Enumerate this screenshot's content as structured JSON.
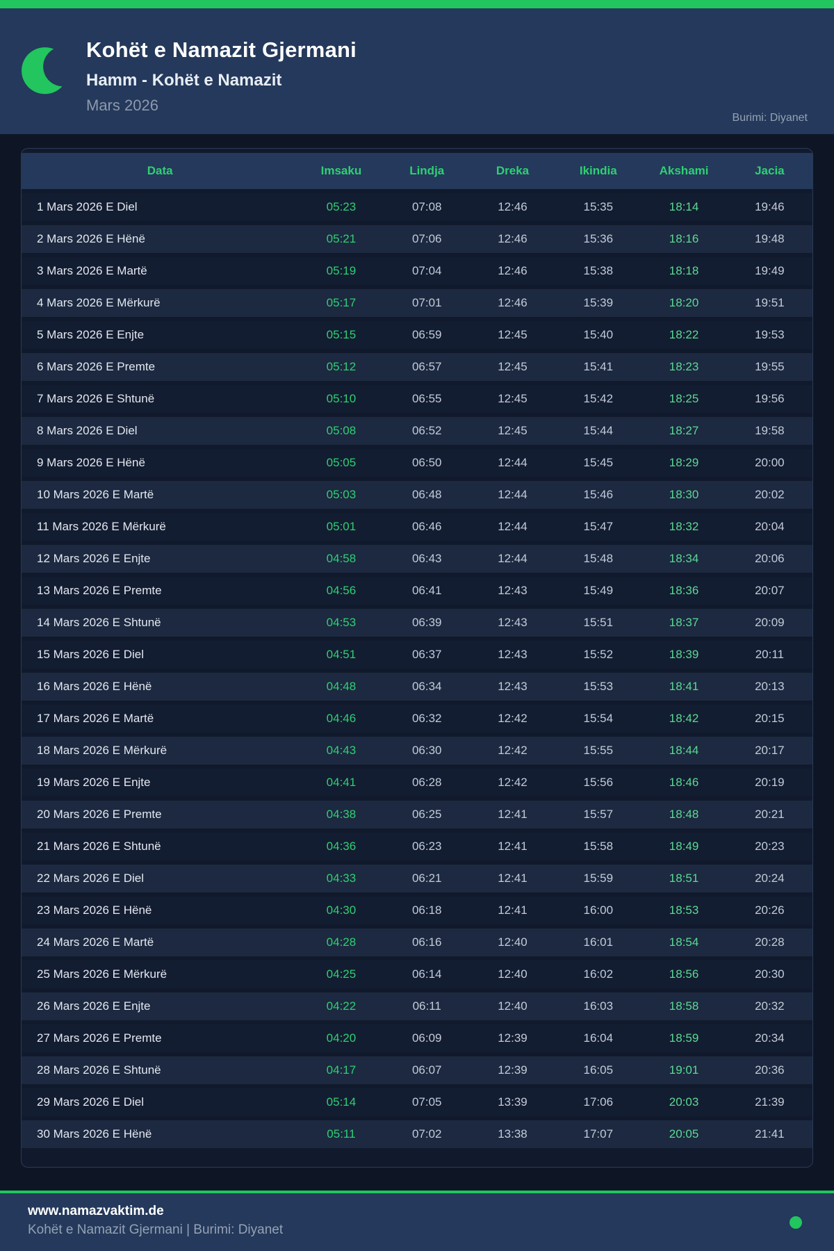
{
  "colors": {
    "accent_green": "#22c55e",
    "header_bg": "#24395b",
    "page_bg": "#0e1626",
    "row_odd": "#131d31",
    "row_even": "#1c2940",
    "imsaku_green": "#2fd072",
    "akshami_green": "#5cd993"
  },
  "icons": {
    "logo": "crescent-moon-icon",
    "footer_status": "green-dot-icon"
  },
  "header": {
    "title": "Kohët e Namazit Gjermani",
    "subtitle": "Hamm - Kohët e Namazit",
    "month": "Mars 2026",
    "source": "Burimi: Diyanet"
  },
  "table": {
    "columns": [
      "Data",
      "Imsaku",
      "Lindja",
      "Dreka",
      "Ikindia",
      "Akshami",
      "Jacia"
    ],
    "rows": [
      [
        "1 Mars 2026 E Diel",
        "05:23",
        "07:08",
        "12:46",
        "15:35",
        "18:14",
        "19:46"
      ],
      [
        "2 Mars 2026 E Hënë",
        "05:21",
        "07:06",
        "12:46",
        "15:36",
        "18:16",
        "19:48"
      ],
      [
        "3 Mars 2026 E Martë",
        "05:19",
        "07:04",
        "12:46",
        "15:38",
        "18:18",
        "19:49"
      ],
      [
        "4 Mars 2026 E Mërkurë",
        "05:17",
        "07:01",
        "12:46",
        "15:39",
        "18:20",
        "19:51"
      ],
      [
        "5 Mars 2026 E Enjte",
        "05:15",
        "06:59",
        "12:45",
        "15:40",
        "18:22",
        "19:53"
      ],
      [
        "6 Mars 2026 E Premte",
        "05:12",
        "06:57",
        "12:45",
        "15:41",
        "18:23",
        "19:55"
      ],
      [
        "7 Mars 2026 E Shtunë",
        "05:10",
        "06:55",
        "12:45",
        "15:42",
        "18:25",
        "19:56"
      ],
      [
        "8 Mars 2026 E Diel",
        "05:08",
        "06:52",
        "12:45",
        "15:44",
        "18:27",
        "19:58"
      ],
      [
        "9 Mars 2026 E Hënë",
        "05:05",
        "06:50",
        "12:44",
        "15:45",
        "18:29",
        "20:00"
      ],
      [
        "10 Mars 2026 E Martë",
        "05:03",
        "06:48",
        "12:44",
        "15:46",
        "18:30",
        "20:02"
      ],
      [
        "11 Mars 2026 E Mërkurë",
        "05:01",
        "06:46",
        "12:44",
        "15:47",
        "18:32",
        "20:04"
      ],
      [
        "12 Mars 2026 E Enjte",
        "04:58",
        "06:43",
        "12:44",
        "15:48",
        "18:34",
        "20:06"
      ],
      [
        "13 Mars 2026 E Premte",
        "04:56",
        "06:41",
        "12:43",
        "15:49",
        "18:36",
        "20:07"
      ],
      [
        "14 Mars 2026 E Shtunë",
        "04:53",
        "06:39",
        "12:43",
        "15:51",
        "18:37",
        "20:09"
      ],
      [
        "15 Mars 2026 E Diel",
        "04:51",
        "06:37",
        "12:43",
        "15:52",
        "18:39",
        "20:11"
      ],
      [
        "16 Mars 2026 E Hënë",
        "04:48",
        "06:34",
        "12:43",
        "15:53",
        "18:41",
        "20:13"
      ],
      [
        "17 Mars 2026 E Martë",
        "04:46",
        "06:32",
        "12:42",
        "15:54",
        "18:42",
        "20:15"
      ],
      [
        "18 Mars 2026 E Mërkurë",
        "04:43",
        "06:30",
        "12:42",
        "15:55",
        "18:44",
        "20:17"
      ],
      [
        "19 Mars 2026 E Enjte",
        "04:41",
        "06:28",
        "12:42",
        "15:56",
        "18:46",
        "20:19"
      ],
      [
        "20 Mars 2026 E Premte",
        "04:38",
        "06:25",
        "12:41",
        "15:57",
        "18:48",
        "20:21"
      ],
      [
        "21 Mars 2026 E Shtunë",
        "04:36",
        "06:23",
        "12:41",
        "15:58",
        "18:49",
        "20:23"
      ],
      [
        "22 Mars 2026 E Diel",
        "04:33",
        "06:21",
        "12:41",
        "15:59",
        "18:51",
        "20:24"
      ],
      [
        "23 Mars 2026 E Hënë",
        "04:30",
        "06:18",
        "12:41",
        "16:00",
        "18:53",
        "20:26"
      ],
      [
        "24 Mars 2026 E Martë",
        "04:28",
        "06:16",
        "12:40",
        "16:01",
        "18:54",
        "20:28"
      ],
      [
        "25 Mars 2026 E Mërkurë",
        "04:25",
        "06:14",
        "12:40",
        "16:02",
        "18:56",
        "20:30"
      ],
      [
        "26 Mars 2026 E Enjte",
        "04:22",
        "06:11",
        "12:40",
        "16:03",
        "18:58",
        "20:32"
      ],
      [
        "27 Mars 2026 E Premte",
        "04:20",
        "06:09",
        "12:39",
        "16:04",
        "18:59",
        "20:34"
      ],
      [
        "28 Mars 2026 E Shtunë",
        "04:17",
        "06:07",
        "12:39",
        "16:05",
        "19:01",
        "20:36"
      ],
      [
        "29 Mars 2026 E Diel",
        "05:14",
        "07:05",
        "13:39",
        "17:06",
        "20:03",
        "21:39"
      ],
      [
        "30 Mars 2026 E Hënë",
        "05:11",
        "07:02",
        "13:38",
        "17:07",
        "20:05",
        "21:41"
      ]
    ]
  },
  "footer": {
    "site": "www.namazvaktim.de",
    "tagline": "Kohët e Namazit Gjermani | Burimi: Diyanet"
  }
}
